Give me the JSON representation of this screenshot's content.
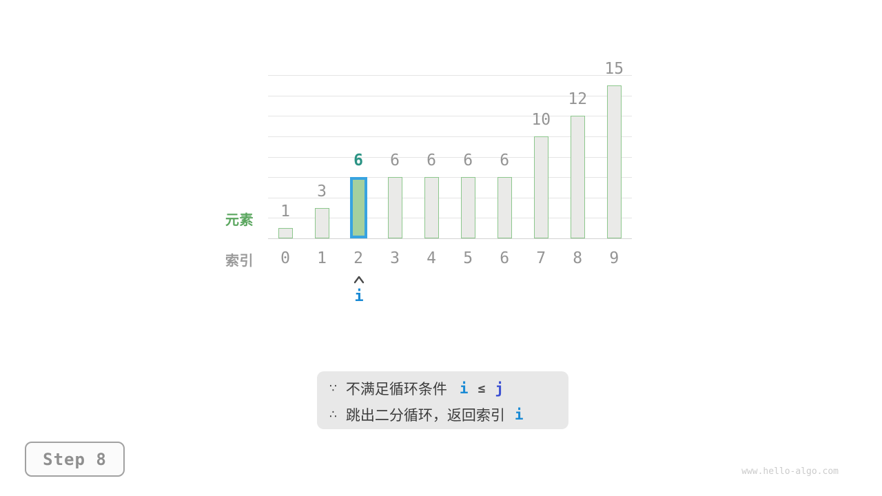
{
  "chart_data": {
    "type": "bar",
    "title": "",
    "categories": [
      "0",
      "1",
      "2",
      "3",
      "4",
      "5",
      "6",
      "7",
      "8",
      "9"
    ],
    "values": [
      1,
      3,
      6,
      6,
      6,
      6,
      6,
      10,
      12,
      15
    ],
    "value_labels": [
      "1",
      "3",
      "6",
      "6",
      "6",
      "6",
      "6",
      "10",
      "12",
      "15"
    ],
    "highlighted_index": 2,
    "xlabel": "索引",
    "ylabel": "元素",
    "ylim": [
      0,
      16
    ],
    "gridline_interval": 2,
    "grid": true,
    "legend_position": "none",
    "pointer": {
      "index": 2,
      "label": "i"
    }
  },
  "axis_labels": {
    "element": "元素",
    "index": "索引"
  },
  "pointer": {
    "label": "i"
  },
  "note_box": {
    "line1": {
      "prefix": "∵",
      "text": "不满足循环条件",
      "token1": "i",
      "operator": "≤",
      "token2": "j"
    },
    "line2": {
      "prefix": "∴",
      "text": "跳出二分循环，返回索引",
      "token": "i"
    }
  },
  "step_badge": {
    "label": "Step 8"
  },
  "watermark": {
    "text": "www.hello-algo.com"
  },
  "colors": {
    "bar_fill": "#eaeae8",
    "bar_border": "#8cc78c",
    "highlight_fill": "#a5d09e",
    "highlight_border": "#38a3e0",
    "highlight_value_text": "#2b9384",
    "value_text": "#949494",
    "index_text": "#949494",
    "element_axis_label": "#5aa65e",
    "index_axis_label": "#9b9b9b",
    "pointer_blue": "#1a8ad4",
    "token_indigo": "#3c50d2",
    "note_background": "#e8e8e8",
    "note_text": "#3c3c3c",
    "gridline": "#e4e4e4",
    "axis_line": "#d2d2d2",
    "step_text": "#8f8f8f",
    "step_border": "#a1a1a1",
    "watermark_text": "#cbcbcb"
  }
}
